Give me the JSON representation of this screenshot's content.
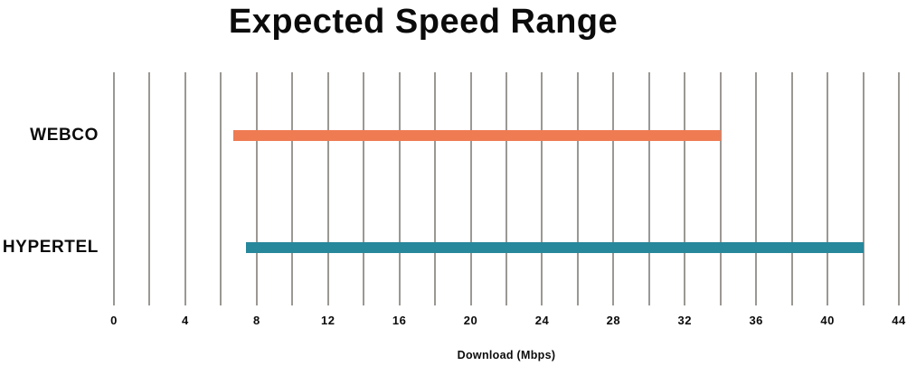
{
  "chart_data": {
    "type": "bar",
    "subtype": "horizontal-range-bar",
    "title": "Expected Speed Range",
    "xlabel": "Download (Mbps)",
    "ylabel": "",
    "categories": [
      "WEBCO",
      "HYPERTEL"
    ],
    "series": [
      {
        "name": "WEBCO",
        "range_start": 6.7,
        "range_end": 34,
        "color": "#ef7b53"
      },
      {
        "name": "HYPERTEL",
        "range_start": 7.4,
        "range_end": 42,
        "color": "#27879b"
      }
    ],
    "xlim": [
      0,
      44
    ],
    "x_major_ticks": [
      0,
      4,
      8,
      12,
      16,
      20,
      24,
      28,
      32,
      36,
      40,
      44
    ],
    "x_minor_gridline_step": 2,
    "grid": true,
    "legend": false,
    "colors": {
      "gridline": "#9b9894",
      "text": "#0b0b0b",
      "background": "#ffffff"
    }
  }
}
